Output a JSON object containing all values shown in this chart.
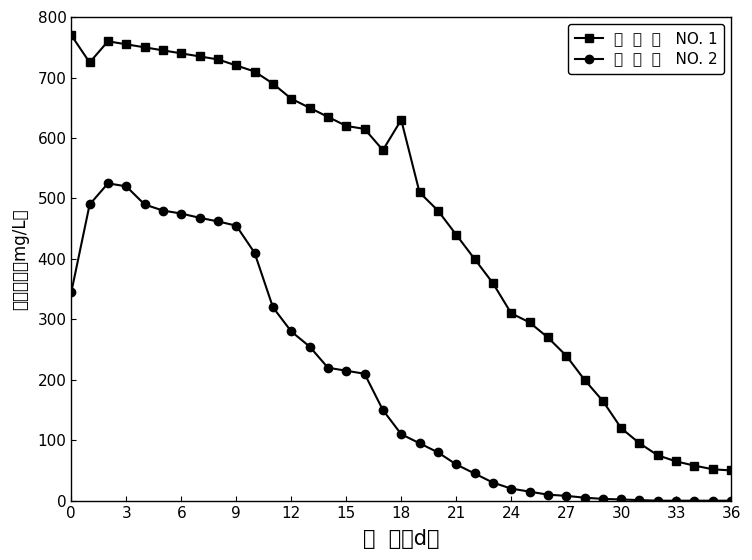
{
  "series1_x": [
    0,
    1,
    2,
    3,
    4,
    5,
    6,
    7,
    8,
    9,
    10,
    11,
    12,
    13,
    14,
    15,
    16,
    17,
    18,
    19,
    20,
    21,
    22,
    23,
    24,
    25,
    26,
    27,
    28,
    29,
    30,
    31,
    32,
    33,
    34,
    35,
    36
  ],
  "series1_y": [
    770,
    725,
    760,
    755,
    750,
    745,
    740,
    735,
    730,
    720,
    710,
    690,
    665,
    650,
    635,
    620,
    615,
    580,
    630,
    510,
    480,
    440,
    400,
    360,
    310,
    295,
    270,
    240,
    200,
    165,
    120,
    95,
    75,
    65,
    58,
    52,
    50
  ],
  "series2_x": [
    0,
    1,
    2,
    3,
    4,
    5,
    6,
    7,
    8,
    9,
    10,
    11,
    12,
    13,
    14,
    15,
    16,
    17,
    18,
    19,
    20,
    21,
    22,
    23,
    24,
    25,
    26,
    27,
    28,
    29,
    30,
    31,
    32,
    33,
    34,
    35,
    36
  ],
  "series2_y": [
    345,
    490,
    525,
    520,
    490,
    480,
    475,
    468,
    462,
    455,
    410,
    320,
    280,
    255,
    220,
    215,
    210,
    150,
    110,
    95,
    80,
    60,
    45,
    30,
    20,
    15,
    10,
    8,
    5,
    3,
    2,
    1,
    0,
    0,
    0,
    0,
    0
  ],
  "line_color": "#000000",
  "marker1": "s",
  "marker2": "o",
  "markersize": 6,
  "linewidth": 1.5,
  "xlabel": "时  间（d）",
  "ylabel": "乙膉含量（mg/L）",
  "xlim": [
    0,
    36
  ],
  "ylim": [
    0,
    800
  ],
  "xticks": [
    0,
    3,
    6,
    9,
    12,
    15,
    18,
    21,
    24,
    27,
    30,
    33,
    36
  ],
  "yticks": [
    0,
    100,
    200,
    300,
    400,
    500,
    600,
    700,
    800
  ],
  "legend1": "反  应  器   NO. 1",
  "legend2": "反  应  器   NO. 2",
  "xlabel_fontsize": 15,
  "ylabel_fontsize": 12,
  "tick_fontsize": 11,
  "legend_fontsize": 11,
  "background_color": "#ffffff"
}
